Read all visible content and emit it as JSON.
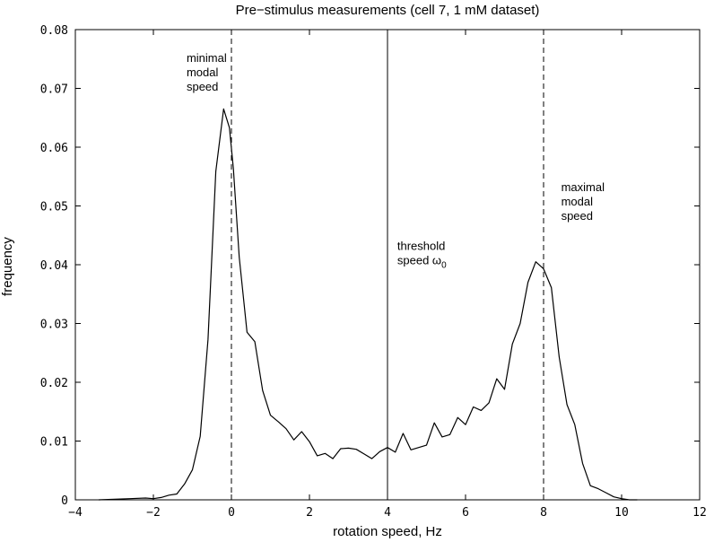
{
  "chart_data": {
    "type": "line",
    "title": "Pre−stimulus measurements (cell 7, 1 mM dataset)",
    "xlabel": "rotation speed, Hz",
    "ylabel": "frequency",
    "xlim": [
      -4,
      12
    ],
    "ylim": [
      0,
      0.08
    ],
    "xticks": [
      -4,
      -2,
      0,
      2,
      4,
      6,
      8,
      10,
      12
    ],
    "xtick_labels": [
      "−4",
      "−2",
      "0",
      "2",
      "4",
      "6",
      "8",
      "10",
      "12"
    ],
    "yticks": [
      0,
      0.01,
      0.02,
      0.03,
      0.04,
      0.05,
      0.06,
      0.07,
      0.08
    ],
    "ytick_labels": [
      "0",
      "0.01",
      "0.02",
      "0.03",
      "0.04",
      "0.05",
      "0.06",
      "0.07",
      "0.08"
    ],
    "grid": false,
    "line_color": "#000000",
    "series": [
      {
        "x": [
          -3.4,
          -3.0,
          -2.6,
          -2.2,
          -2.0,
          -1.8,
          -1.6,
          -1.4,
          -1.2,
          -1.0,
          -0.8,
          -0.6,
          -0.4,
          -0.2,
          -0.05,
          0.05,
          0.2,
          0.4,
          0.6,
          0.8,
          1.0,
          1.2,
          1.4,
          1.6,
          1.8,
          2.0,
          2.2,
          2.4,
          2.6,
          2.8,
          3.0,
          3.2,
          3.4,
          3.6,
          3.8,
          4.0,
          4.2,
          4.4,
          4.6,
          4.8,
          5.0,
          5.2,
          5.4,
          5.6,
          5.8,
          6.0,
          6.2,
          6.4,
          6.6,
          6.8,
          7.0,
          7.2,
          7.4,
          7.6,
          7.8,
          8.0,
          8.2,
          8.4,
          8.6,
          8.8,
          9.0,
          9.2,
          9.4,
          9.6,
          9.8,
          10.0,
          10.2,
          10.4
        ],
        "y": [
          0.0,
          0.0001,
          0.0002,
          0.0003,
          0.0002,
          0.0004,
          0.0008,
          0.001,
          0.0027,
          0.0051,
          0.0108,
          0.0273,
          0.0559,
          0.0665,
          0.0633,
          0.0563,
          0.0413,
          0.0285,
          0.0269,
          0.0186,
          0.0144,
          0.0133,
          0.0121,
          0.0102,
          0.0116,
          0.0099,
          0.0075,
          0.0079,
          0.007,
          0.0087,
          0.0088,
          0.0086,
          0.0078,
          0.007,
          0.0082,
          0.0089,
          0.0081,
          0.0113,
          0.0085,
          0.0089,
          0.0093,
          0.0131,
          0.0107,
          0.0111,
          0.014,
          0.0128,
          0.0158,
          0.0152,
          0.0165,
          0.0206,
          0.0188,
          0.0265,
          0.03,
          0.037,
          0.0405,
          0.0393,
          0.0361,
          0.0243,
          0.0162,
          0.0128,
          0.0062,
          0.0024,
          0.0019,
          0.0012,
          0.0005,
          0.0002,
          0.0,
          0.0
        ]
      }
    ],
    "vlines": [
      {
        "x": 0,
        "style": "dashed"
      },
      {
        "x": 4,
        "style": "solid"
      },
      {
        "x": 8,
        "style": "dashed"
      }
    ],
    "annotations": [
      {
        "lines": [
          "minimal",
          "modal",
          "speed"
        ],
        "x": -1.15,
        "y": 0.0745
      },
      {
        "lines": [
          "threshold",
          "speed ω"
        ],
        "subscript": "0",
        "x": 4.25,
        "y": 0.0425
      },
      {
        "lines": [
          "maximal",
          "modal",
          "speed"
        ],
        "x": 8.45,
        "y": 0.0525
      }
    ]
  }
}
